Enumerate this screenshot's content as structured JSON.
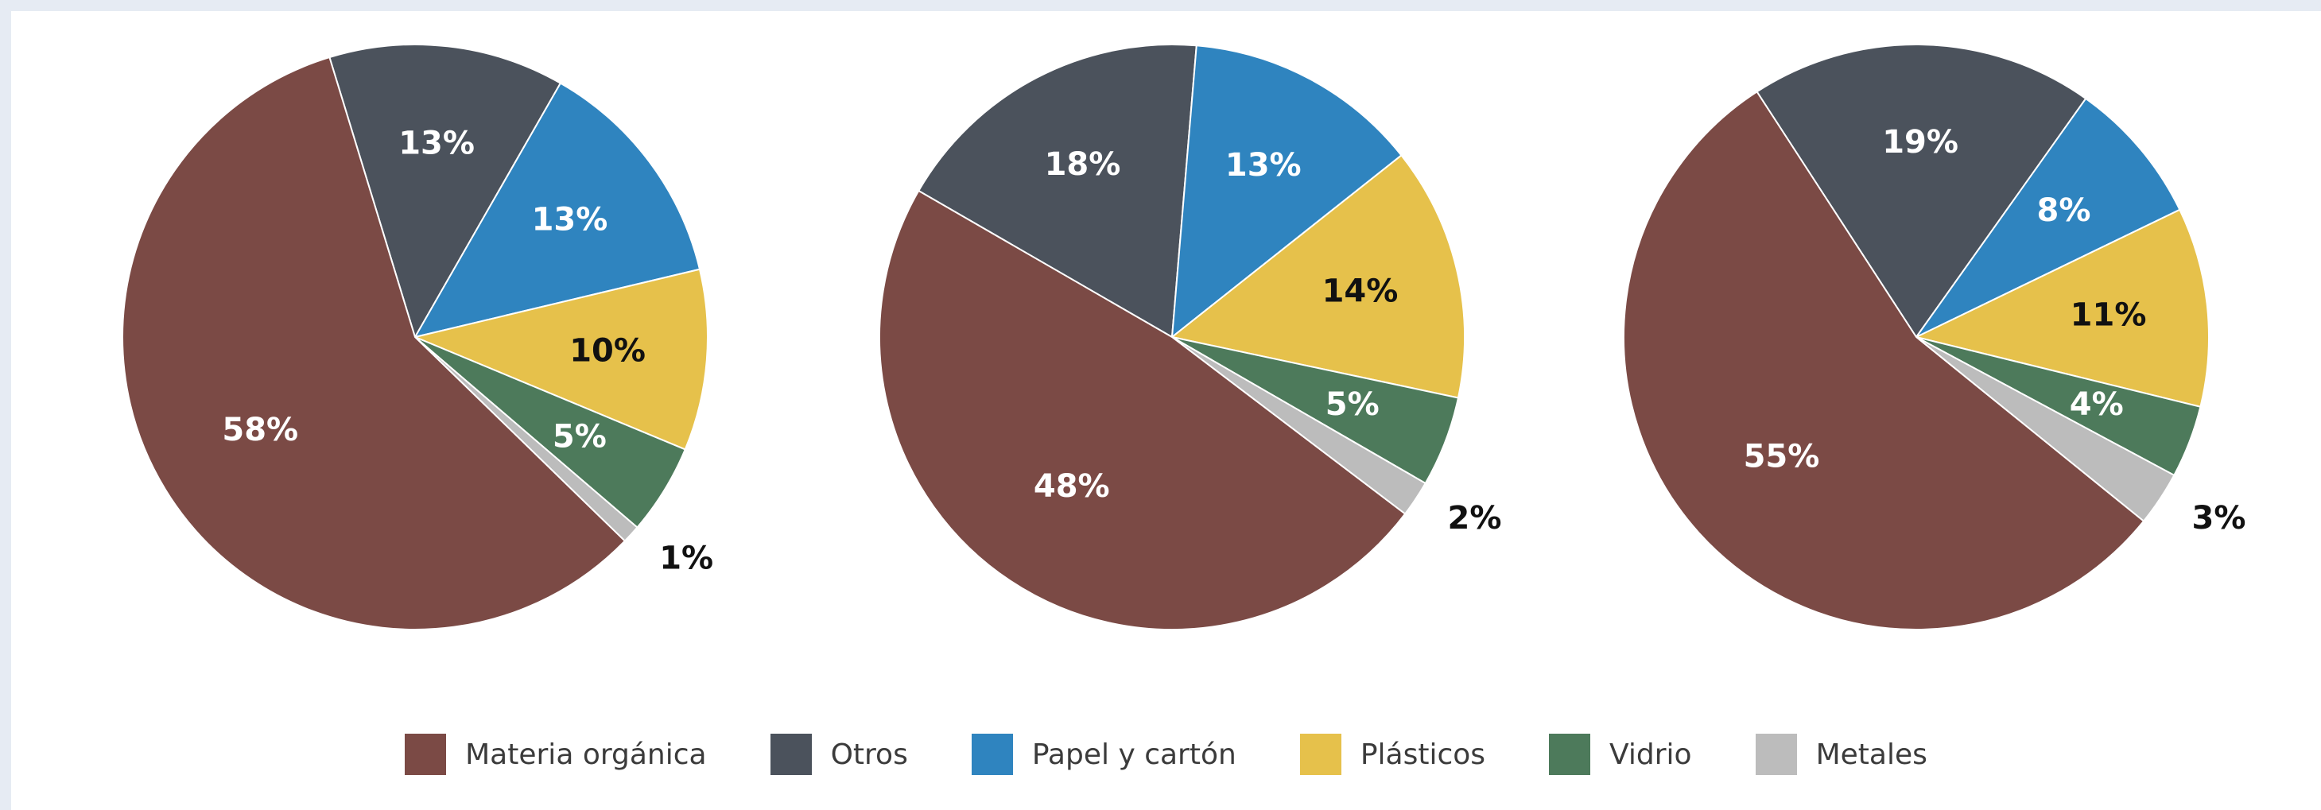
{
  "chart_data": {
    "type": "pie",
    "categories": [
      "Materia orgánica",
      "Otros",
      "Papel y cartón",
      "Plásticos",
      "Vidrio",
      "Metales"
    ],
    "colors": [
      "#7b4a45",
      "#4b525c",
      "#2f84bf",
      "#e6c14b",
      "#4d7a5b",
      "#bcbcbc"
    ],
    "label_colors": [
      "#ffffff",
      "#ffffff",
      "#ffffff",
      "#111111",
      "#ffffff",
      "#111111"
    ],
    "pies": [
      {
        "values": [
          58,
          13,
          13,
          10,
          5,
          1
        ],
        "labels": [
          "58%",
          "13%",
          "13%",
          "10%",
          "5%",
          "1%"
        ]
      },
      {
        "values": [
          48,
          18,
          13,
          14,
          5,
          2
        ],
        "labels": [
          "48%",
          "18%",
          "13%",
          "14%",
          "5%",
          "2%"
        ]
      },
      {
        "values": [
          55,
          19,
          8,
          11,
          4,
          3
        ],
        "labels": [
          "55%",
          "19%",
          "8%",
          "11%",
          "4%",
          "3%"
        ]
      }
    ],
    "legend_position": "bottom"
  }
}
